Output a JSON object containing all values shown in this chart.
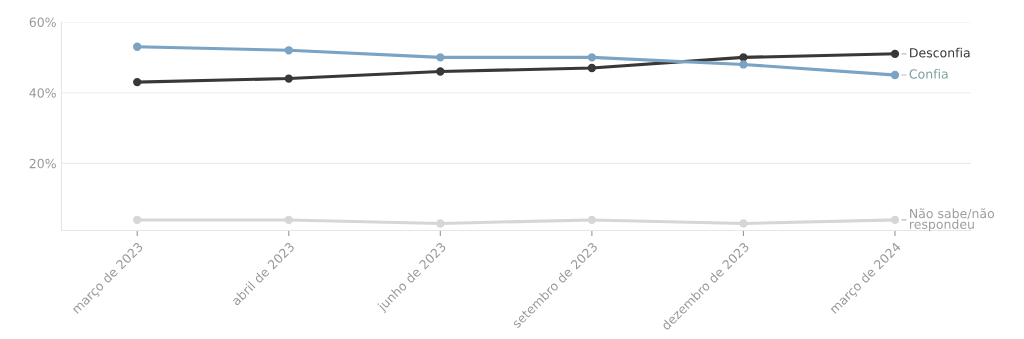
{
  "chart_data": {
    "type": "line",
    "categories": [
      "março de 2023",
      "abril de 2023",
      "junho de 2023",
      "setembro de 2023",
      "dezembro de 2023",
      "março de 2024"
    ],
    "series": [
      {
        "name": "Desconfia",
        "color": "#383838",
        "values": [
          43,
          44,
          46,
          47,
          50,
          51
        ]
      },
      {
        "name": "Confia",
        "color": "#7ba3c4",
        "values": [
          53,
          52,
          50,
          50,
          48,
          45
        ]
      },
      {
        "name": "Não sabe/não respondeu",
        "color": "#d6d6d6",
        "values": [
          4,
          4,
          3,
          4,
          3,
          4
        ]
      }
    ],
    "ylim": [
      1,
      60
    ],
    "yticks": [
      {
        "value": 20,
        "label": "20%"
      },
      {
        "value": 40,
        "label": "40%"
      },
      {
        "value": 60,
        "label": "60%"
      }
    ],
    "grid": "y",
    "marker": "circle",
    "line_style": "solid",
    "legend": false
  }
}
